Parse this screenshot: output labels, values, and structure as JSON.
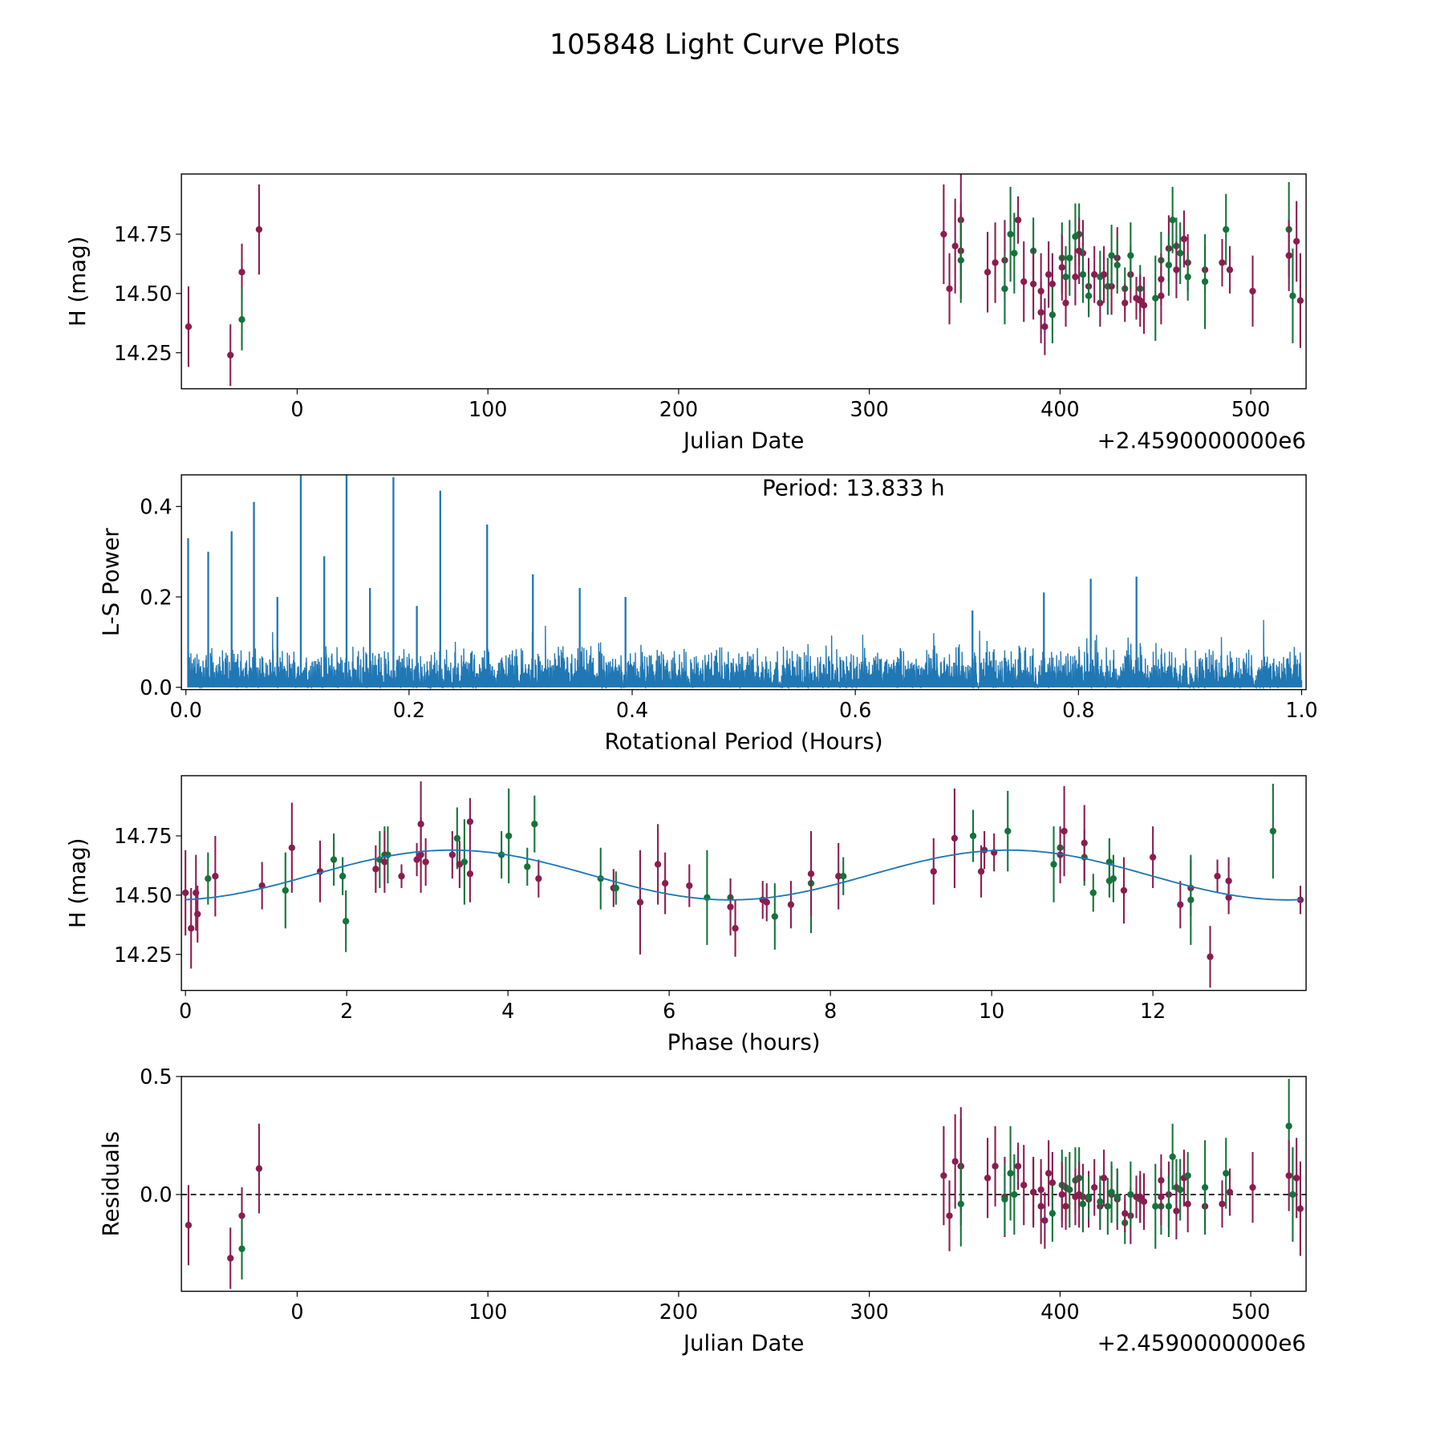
{
  "title": "105848 Light Curve Plots",
  "colors": {
    "filter_a": "#8a1c50",
    "filter_b": "#14733a",
    "line": "#1f77b4"
  },
  "chart_data": [
    {
      "id": "lightcurve",
      "type": "scatter",
      "xlabel": "Julian Date",
      "ylabel": "H (mag)",
      "offset_label": "+2.4590000000e6",
      "xlim": [
        -60.7,
        529
      ],
      "ylim": [
        14.098,
        15.004
      ],
      "xticks": [
        0,
        100,
        200,
        300,
        400,
        500
      ],
      "xtick_labels": [
        "0",
        "100",
        "200",
        "300",
        "400",
        "500"
      ],
      "yticks": [
        14.25,
        14.5,
        14.75
      ],
      "ytick_labels": [
        "14.25",
        "14.50",
        "14.75"
      ]
    },
    {
      "id": "periodogram",
      "type": "line",
      "xlabel": "Rotational Period (Hours)",
      "ylabel": "L-S Power",
      "annotation": "Period: 13.833 h",
      "xlim": [
        -0.004,
        1.004
      ],
      "ylim": [
        -0.005,
        0.47
      ],
      "xticks": [
        0,
        0.2,
        0.4,
        0.6,
        0.8,
        1.0
      ],
      "xtick_labels": [
        "0.0",
        "0.2",
        "0.4",
        "0.6",
        "0.8",
        "1.0"
      ],
      "yticks": [
        0,
        0.2,
        0.4
      ],
      "ytick_labels": [
        "0.0",
        "0.2",
        "0.4"
      ],
      "noise_level": 0.06,
      "peaks": [
        [
          0.002,
          0.33
        ],
        [
          0.02,
          0.3
        ],
        [
          0.041,
          0.345
        ],
        [
          0.061,
          0.41
        ],
        [
          0.082,
          0.2
        ],
        [
          0.103,
          0.47
        ],
        [
          0.124,
          0.29
        ],
        [
          0.144,
          0.47
        ],
        [
          0.165,
          0.22
        ],
        [
          0.186,
          0.465
        ],
        [
          0.207,
          0.18
        ],
        [
          0.228,
          0.435
        ],
        [
          0.27,
          0.36
        ],
        [
          0.311,
          0.25
        ],
        [
          0.353,
          0.22
        ],
        [
          0.394,
          0.2
        ],
        [
          0.705,
          0.17
        ],
        [
          0.769,
          0.21
        ],
        [
          0.811,
          0.24
        ],
        [
          0.852,
          0.245
        ]
      ]
    },
    {
      "id": "phased",
      "type": "scatter",
      "xlabel": "Phase (hours)",
      "ylabel": "H (mag)",
      "xlim": [
        -0.05,
        13.9
      ],
      "ylim": [
        14.098,
        15.004
      ],
      "xticks": [
        0,
        2,
        4,
        6,
        8,
        10,
        12
      ],
      "xtick_labels": [
        "0",
        "2",
        "4",
        "6",
        "8",
        "10",
        "12"
      ],
      "yticks": [
        14.25,
        14.5,
        14.75
      ],
      "ytick_labels": [
        "14.25",
        "14.50",
        "14.75"
      ],
      "period_hours": 13.833,
      "model": {
        "mean": 14.585,
        "amplitude": 0.105,
        "peak_phase": 3.3,
        "cycles_per_period": 2
      },
      "points": [
        [
          0.0,
          14.51,
          0.18,
          "m"
        ],
        [
          0.07,
          14.36,
          0.17,
          "m"
        ],
        [
          0.13,
          14.51,
          0.16,
          "m"
        ],
        [
          0.15,
          14.42,
          0.12,
          "m"
        ],
        [
          0.28,
          14.57,
          0.11,
          "g"
        ],
        [
          0.37,
          14.58,
          0.17,
          "m"
        ],
        [
          0.95,
          14.54,
          0.1,
          "m"
        ],
        [
          1.24,
          14.52,
          0.16,
          "g"
        ],
        [
          1.32,
          14.7,
          0.19,
          "m"
        ],
        [
          1.67,
          14.6,
          0.13,
          "m"
        ],
        [
          1.84,
          14.65,
          0.11,
          "g"
        ],
        [
          1.95,
          14.58,
          0.08,
          "g"
        ],
        [
          1.99,
          14.39,
          0.13,
          "g"
        ],
        [
          2.36,
          14.61,
          0.1,
          "m"
        ],
        [
          2.41,
          14.65,
          0.12,
          "g"
        ],
        [
          2.47,
          14.67,
          0.12,
          "g"
        ],
        [
          2.47,
          14.64,
          0.13,
          "m"
        ],
        [
          2.51,
          14.67,
          0.12,
          "g"
        ],
        [
          2.68,
          14.58,
          0.05,
          "m"
        ],
        [
          2.87,
          14.65,
          0.07,
          "m"
        ],
        [
          2.92,
          14.8,
          0.18,
          "m"
        ],
        [
          2.92,
          14.67,
          0.16,
          "m"
        ],
        [
          2.98,
          14.64,
          0.1,
          "m"
        ],
        [
          3.31,
          14.67,
          0.1,
          "m"
        ],
        [
          3.37,
          14.74,
          0.13,
          "g"
        ],
        [
          3.4,
          14.63,
          0.1,
          "m"
        ],
        [
          3.46,
          14.64,
          0.18,
          "g"
        ],
        [
          3.53,
          14.81,
          0.1,
          "m"
        ],
        [
          3.53,
          14.59,
          0.12,
          "m"
        ],
        [
          3.92,
          14.67,
          0.1,
          "g"
        ],
        [
          4.01,
          14.75,
          0.2,
          "g"
        ],
        [
          4.24,
          14.62,
          0.08,
          "g"
        ],
        [
          4.33,
          14.8,
          0.12,
          "g"
        ],
        [
          4.38,
          14.57,
          0.08,
          "m"
        ],
        [
          5.15,
          14.57,
          0.13,
          "g"
        ],
        [
          5.31,
          14.53,
          0.08,
          "m"
        ],
        [
          5.34,
          14.53,
          0.07,
          "g"
        ],
        [
          5.64,
          14.47,
          0.22,
          "m"
        ],
        [
          5.86,
          14.63,
          0.17,
          "m"
        ],
        [
          5.95,
          14.55,
          0.13,
          "m"
        ],
        [
          6.25,
          14.54,
          0.09,
          "m"
        ],
        [
          6.47,
          14.49,
          0.2,
          "g"
        ],
        [
          6.76,
          14.49,
          0.08,
          "g"
        ],
        [
          6.76,
          14.45,
          0.12,
          "m"
        ],
        [
          6.82,
          14.36,
          0.12,
          "m"
        ],
        [
          7.16,
          14.48,
          0.08,
          "m"
        ],
        [
          7.21,
          14.47,
          0.08,
          "m"
        ],
        [
          7.31,
          14.41,
          0.14,
          "g"
        ],
        [
          7.51,
          14.46,
          0.1,
          "m"
        ],
        [
          7.76,
          14.55,
          0.21,
          "g"
        ],
        [
          7.76,
          14.59,
          0.18,
          "m"
        ],
        [
          8.1,
          14.58,
          0.14,
          "m"
        ],
        [
          8.16,
          14.58,
          0.08,
          "g"
        ],
        [
          9.28,
          14.6,
          0.14,
          "m"
        ],
        [
          9.54,
          14.74,
          0.21,
          "m"
        ],
        [
          9.77,
          14.75,
          0.11,
          "g"
        ],
        [
          9.87,
          14.6,
          0.11,
          "m"
        ],
        [
          9.91,
          14.69,
          0.08,
          "m"
        ],
        [
          10.03,
          14.68,
          0.08,
          "m"
        ],
        [
          10.2,
          14.77,
          0.17,
          "g"
        ],
        [
          10.77,
          14.63,
          0.16,
          "g"
        ],
        [
          10.85,
          14.7,
          0.08,
          "g"
        ],
        [
          10.85,
          14.67,
          0.12,
          "m"
        ],
        [
          10.9,
          14.77,
          0.19,
          "m"
        ],
        [
          11.15,
          14.66,
          0.12,
          "g"
        ],
        [
          11.15,
          14.72,
          0.16,
          "m"
        ],
        [
          11.26,
          14.51,
          0.08,
          "g"
        ],
        [
          11.46,
          14.64,
          0.1,
          "g"
        ],
        [
          11.46,
          14.56,
          0.07,
          "g"
        ],
        [
          11.51,
          14.57,
          0.1,
          "g"
        ],
        [
          11.64,
          14.52,
          0.14,
          "m"
        ],
        [
          12.0,
          14.66,
          0.13,
          "m"
        ],
        [
          12.34,
          14.46,
          0.1,
          "m"
        ],
        [
          12.47,
          14.53,
          0.12,
          "m"
        ],
        [
          12.47,
          14.48,
          0.19,
          "g"
        ],
        [
          12.71,
          14.24,
          0.13,
          "m"
        ],
        [
          12.8,
          14.58,
          0.07,
          "m"
        ],
        [
          12.94,
          14.56,
          0.1,
          "m"
        ],
        [
          12.94,
          14.49,
          0.07,
          "m"
        ],
        [
          13.49,
          14.77,
          0.2,
          "g"
        ],
        [
          13.83,
          14.48,
          0.06,
          "m"
        ]
      ]
    },
    {
      "id": "residuals",
      "type": "scatter",
      "xlabel": "Julian Date",
      "ylabel": "Residuals",
      "offset_label": "+2.4590000000e6",
      "xlim": [
        -60.7,
        529
      ],
      "ylim": [
        -0.41,
        0.5
      ],
      "xticks": [
        0,
        100,
        200,
        300,
        400,
        500
      ],
      "xtick_labels": [
        "0",
        "100",
        "200",
        "300",
        "400",
        "500"
      ],
      "yticks": [
        0.0,
        0.5
      ],
      "ytick_labels": [
        "0.0",
        "0.5"
      ],
      "zero_line": true
    }
  ],
  "observations": [
    [
      -57,
      14.36,
      0.17,
      "m",
      -0.13
    ],
    [
      -35,
      14.24,
      0.13,
      "m",
      -0.27
    ],
    [
      -29,
      14.59,
      0.12,
      "m",
      -0.09
    ],
    [
      -29,
      14.39,
      0.13,
      "g",
      -0.23
    ],
    [
      -20,
      14.77,
      0.19,
      "m",
      0.11
    ],
    [
      339,
      14.75,
      0.21,
      "m",
      0.08
    ],
    [
      342,
      14.52,
      0.15,
      "m",
      -0.09
    ],
    [
      345,
      14.7,
      0.2,
      "m",
      0.14
    ],
    [
      348,
      14.68,
      0.2,
      "m",
      0.12
    ],
    [
      348,
      14.81,
      0.25,
      "m",
      0.12
    ],
    [
      348,
      14.64,
      0.18,
      "g",
      -0.04
    ],
    [
      362,
      14.59,
      0.17,
      "m",
      0.07
    ],
    [
      366,
      14.63,
      0.17,
      "m",
      0.12
    ],
    [
      371,
      14.64,
      0.17,
      "m",
      -0.01
    ],
    [
      371,
      14.52,
      0.15,
      "g",
      -0.02
    ],
    [
      374,
      14.75,
      0.2,
      "g",
      0.09
    ],
    [
      376,
      14.67,
      0.17,
      "g",
      0.0
    ],
    [
      378,
      14.81,
      0.1,
      "m",
      0.12
    ],
    [
      381,
      14.55,
      0.17,
      "m",
      0.04
    ],
    [
      386,
      14.68,
      0.14,
      "g",
      0.01
    ],
    [
      386,
      14.54,
      0.15,
      "m",
      0.01
    ],
    [
      390,
      14.51,
      0.16,
      "m",
      -0.05
    ],
    [
      390,
      14.42,
      0.13,
      "m",
      0.02
    ],
    [
      392,
      14.36,
      0.12,
      "m",
      -0.11
    ],
    [
      394,
      14.58,
      0.14,
      "m",
      0.09
    ],
    [
      396,
      14.54,
      0.13,
      "m",
      0.05
    ],
    [
      396,
      14.41,
      0.12,
      "g",
      -0.08
    ],
    [
      401,
      14.65,
      0.15,
      "g",
      0.04
    ],
    [
      401,
      14.61,
      0.14,
      "m",
      0.0
    ],
    [
      403,
      14.57,
      0.13,
      "g",
      0.03
    ],
    [
      403,
      14.46,
      0.1,
      "m",
      -0.05
    ],
    [
      405,
      14.65,
      0.16,
      "g",
      0.02
    ],
    [
      408,
      14.74,
      0.14,
      "g",
      0.06
    ],
    [
      408,
      14.57,
      0.12,
      "m",
      -0.01
    ],
    [
      410,
      14.75,
      0.13,
      "g",
      0.07
    ],
    [
      410,
      14.68,
      0.14,
      "m",
      0.0
    ],
    [
      412,
      14.67,
      0.14,
      "m",
      -0.01
    ],
    [
      412,
      14.58,
      0.12,
      "g",
      -0.04
    ],
    [
      415,
      14.53,
      0.12,
      "m",
      -0.02
    ],
    [
      415,
      14.49,
      0.09,
      "g",
      -0.01
    ],
    [
      418,
      14.58,
      0.12,
      "m",
      0.03
    ],
    [
      421,
      14.46,
      0.1,
      "m",
      -0.05
    ],
    [
      421,
      14.57,
      0.11,
      "g",
      -0.03
    ],
    [
      423,
      14.58,
      0.12,
      "m",
      0.07
    ],
    [
      425,
      14.53,
      0.12,
      "g",
      -0.05
    ],
    [
      427,
      14.53,
      0.12,
      "m",
      0.0
    ],
    [
      427,
      14.66,
      0.13,
      "g",
      0.01
    ],
    [
      430,
      14.65,
      0.13,
      "m",
      -0.02
    ],
    [
      430,
      14.62,
      0.12,
      "g",
      -0.01
    ],
    [
      434,
      14.52,
      0.09,
      "g",
      -0.12
    ],
    [
      434,
      14.46,
      0.08,
      "m",
      -0.08
    ],
    [
      437,
      14.58,
      0.12,
      "m",
      -0.09
    ],
    [
      437,
      14.66,
      0.14,
      "g",
      0.0
    ],
    [
      440,
      14.48,
      0.09,
      "m",
      -0.01
    ],
    [
      442,
      14.52,
      0.1,
      "g",
      -0.02
    ],
    [
      442,
      14.47,
      0.11,
      "m",
      -0.01
    ],
    [
      444,
      14.45,
      0.12,
      "m",
      -0.03
    ],
    [
      450,
      14.48,
      0.18,
      "g",
      -0.05
    ],
    [
      453,
      14.64,
      0.12,
      "g",
      -0.05
    ],
    [
      453,
      14.56,
      0.11,
      "m",
      0.06
    ],
    [
      453,
      14.49,
      0.12,
      "m",
      -0.01
    ],
    [
      457,
      14.69,
      0.14,
      "m",
      0.0
    ],
    [
      457,
      14.62,
      0.13,
      "g",
      -0.05
    ],
    [
      459,
      14.81,
      0.14,
      "g",
      0.16
    ],
    [
      461,
      14.7,
      0.12,
      "g",
      0.03
    ],
    [
      461,
      14.6,
      0.12,
      "m",
      -0.07
    ],
    [
      463,
      14.67,
      0.13,
      "g",
      0.02
    ],
    [
      465,
      14.73,
      0.12,
      "m",
      0.07
    ],
    [
      467,
      14.63,
      0.12,
      "m",
      -0.04
    ],
    [
      467,
      14.57,
      0.1,
      "g",
      0.08
    ],
    [
      476,
      14.6,
      0.1,
      "m",
      -0.05
    ],
    [
      476,
      14.55,
      0.2,
      "g",
      0.03
    ],
    [
      485,
      14.63,
      0.1,
      "m",
      -0.04
    ],
    [
      487,
      14.77,
      0.15,
      "g",
      0.09
    ],
    [
      489,
      14.6,
      0.1,
      "m",
      0.01
    ],
    [
      501,
      14.51,
      0.15,
      "m",
      0.03
    ],
    [
      520,
      14.77,
      0.2,
      "g",
      0.29
    ],
    [
      520,
      14.66,
      0.15,
      "m",
      0.08
    ],
    [
      522,
      14.49,
      0.2,
      "g",
      0.0
    ],
    [
      524,
      14.72,
      0.17,
      "m",
      0.07
    ],
    [
      526,
      14.47,
      0.2,
      "m",
      -0.06
    ]
  ]
}
